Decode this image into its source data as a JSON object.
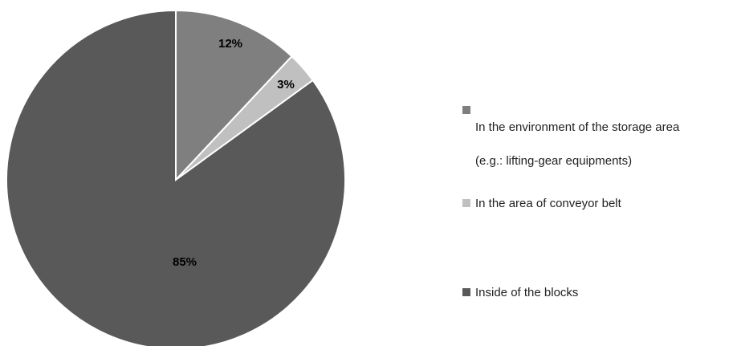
{
  "chart_data": {
    "type": "pie",
    "title": "",
    "slices": [
      {
        "label": "In the environment of the storage area (e.g.: lifting-gear equipments)",
        "value": 12,
        "display": "12%",
        "color": "#7f7f7f"
      },
      {
        "label": "In the area of conveyor belt",
        "value": 3,
        "display": "3%",
        "color": "#c0c0c0"
      },
      {
        "label": "Inside of the blocks",
        "value": 85,
        "display": "85%",
        "color": "#595959"
      }
    ],
    "legend_position": "right"
  },
  "legend": {
    "items": [
      {
        "line1": "In the environment of the storage area",
        "line2": "(e.g.: lifting-gear equipments)"
      },
      {
        "line1": "In the area of conveyor belt",
        "line2": ""
      },
      {
        "line1": "Inside of the blocks",
        "line2": ""
      }
    ]
  }
}
